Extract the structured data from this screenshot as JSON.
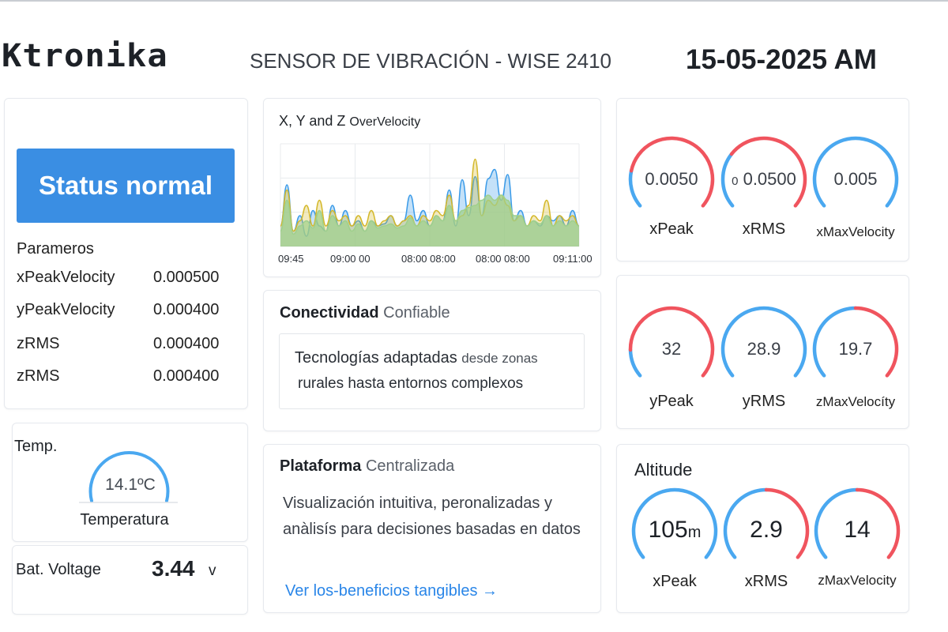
{
  "header": {
    "logo": "Ktronika",
    "title": "SENSOR DE VIBRACIÓN - WISE 2410",
    "datetime": "15-05-2025  AM"
  },
  "status": {
    "label": "Status normal",
    "color": "#3a8ee3"
  },
  "params": {
    "title": "Parameros",
    "rows": [
      {
        "label": "xPeakVelocity",
        "value": "0.000500"
      },
      {
        "label": "yPeakVelocity",
        "value": "0.000400"
      },
      {
        "label": "zRMS",
        "value": "0.000400"
      },
      {
        "label": "zRMS",
        "value": "0.000400"
      }
    ]
  },
  "temp": {
    "title": "Temp.",
    "value": "14.1ºC",
    "label": "Temperatura"
  },
  "battery": {
    "label": "Bat. Voltage",
    "value": "3.44",
    "unit": "v"
  },
  "chart_data": {
    "type": "area",
    "title": "X, Y and Z",
    "title_suffix": "OverVelocity",
    "x_ticks": [
      "09:45",
      "09:00 00",
      "08:00 08:00",
      "08:00 08:00",
      "09:11:00"
    ],
    "grid": true,
    "colors": [
      "#3b9be8",
      "#d4b82a",
      "#9fd08c"
    ],
    "series": [
      {
        "values": [
          0.2,
          0.6,
          0.15,
          0.3,
          0.1,
          0.35,
          0.2,
          0.15,
          0.4,
          0.2,
          0.35,
          0.2,
          0.25,
          0.15,
          0.25,
          0.2,
          0.22,
          0.3,
          0.2,
          0.25,
          0.5,
          0.25,
          0.35,
          0.2,
          0.3,
          0.25,
          0.55,
          0.2,
          0.65,
          0.3,
          0.68,
          0.3,
          0.66,
          0.75,
          0.45,
          0.7,
          0.25,
          0.35,
          0.2,
          0.25,
          0.2,
          0.3,
          0.25,
          0.3,
          0.2,
          0.35,
          0.2
        ]
      },
      {
        "values": [
          0.2,
          0.55,
          0.15,
          0.25,
          0.4,
          0.2,
          0.45,
          0.2,
          0.35,
          0.25,
          0.3,
          0.2,
          0.3,
          0.2,
          0.35,
          0.2,
          0.25,
          0.3,
          0.2,
          0.25,
          0.3,
          0.2,
          0.3,
          0.25,
          0.35,
          0.3,
          0.5,
          0.25,
          0.3,
          0.4,
          0.85,
          0.3,
          0.45,
          0.4,
          0.5,
          0.4,
          0.25,
          0.3,
          0.2,
          0.3,
          0.25,
          0.45,
          0.2,
          0.3,
          0.25,
          0.3,
          0.2
        ]
      },
      {
        "values": [
          0.15,
          0.45,
          0.12,
          0.2,
          0.25,
          0.18,
          0.35,
          0.15,
          0.3,
          0.2,
          0.25,
          0.15,
          0.22,
          0.15,
          0.25,
          0.18,
          0.2,
          0.22,
          0.18,
          0.2,
          0.28,
          0.2,
          0.25,
          0.2,
          0.3,
          0.25,
          0.4,
          0.25,
          0.35,
          0.38,
          0.4,
          0.45,
          0.5,
          0.45,
          0.5,
          0.45,
          0.3,
          0.3,
          0.2,
          0.25,
          0.22,
          0.3,
          0.2,
          0.25,
          0.2,
          0.25,
          0.2
        ]
      }
    ]
  },
  "conectividad": {
    "title": "Conectividad",
    "subtitle": "Confiable",
    "text_a": "Tecnologías adaptadas",
    "text_b": "desde zonas",
    "text_c": "rurales hasta entornos complexos"
  },
  "plataforma": {
    "title": "Plataforma",
    "subtitle": "Centralizada",
    "text": "Visualización intuitiva, peronalizadas y anàlisís para decisiones basadas en datos",
    "link": "Ver los‑beneficios tangibles →"
  },
  "gauges": {
    "colors": {
      "normal": "#4aa8f0",
      "alert": "#f0545e"
    },
    "row1": [
      {
        "value": "0.0050",
        "prefix": "",
        "label": "xPeak",
        "blue_fraction": 0.2
      },
      {
        "value": "0.0500",
        "prefix": "0",
        "label": "xRMS",
        "blue_fraction": 0.3
      },
      {
        "value": "0.005",
        "prefix": "",
        "label": "xMaxVelocity",
        "blue_fraction": 1
      }
    ],
    "row2": [
      {
        "value": "32",
        "label": "yPeak",
        "blue_fraction": 0.15
      },
      {
        "value": "28.9",
        "label": "yRMS",
        "blue_fraction": 1
      },
      {
        "value": "19.7",
        "label": "zMaxVelocíty",
        "blue_fraction": 0.5
      }
    ],
    "altitude": {
      "title": "Altitude",
      "items": [
        {
          "value": "105",
          "unit": "m",
          "label": "xPeak",
          "blue_fraction": 1
        },
        {
          "value": "2.9",
          "label": "xRMS",
          "blue_fraction": 0.5
        },
        {
          "value": "14",
          "label": "zMaxVelocity",
          "blue_fraction": 0.5
        }
      ]
    }
  }
}
